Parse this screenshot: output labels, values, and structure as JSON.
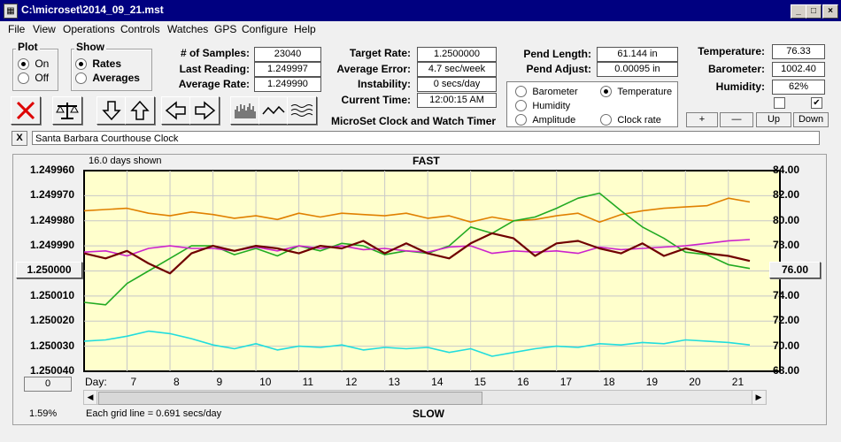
{
  "window": {
    "title": "C:\\microset\\2014_09_21.mst"
  },
  "menu": [
    "File",
    "View",
    "Operations",
    "Controls",
    "Watches",
    "GPS",
    "Configure",
    "Help"
  ],
  "plot": {
    "label": "Plot",
    "on": "On",
    "off": "Off"
  },
  "show": {
    "label": "Show",
    "rates": "Rates",
    "averages": "Averages"
  },
  "stats": {
    "samples_label": "# of Samples:",
    "samples": "23040",
    "last_label": "Last Reading:",
    "last": "1.249997",
    "avg_label": "Average Rate:",
    "avg": "1.249990"
  },
  "target": {
    "target_label": "Target Rate:",
    "target": "1.2500000",
    "avgerr_label": "Average Error:",
    "avgerr": "4.7 sec/week",
    "instab_label": "Instability:",
    "instab": "0 secs/day",
    "time_label": "Current Time:",
    "time": "12:00:15 AM",
    "app_name": "MicroSet Clock and Watch Timer"
  },
  "pendulum": {
    "length_label": "Pend Length:",
    "length": "61.144 in",
    "adjust_label": "Pend Adjust:",
    "adjust": "0.00095 in"
  },
  "env": {
    "temp_label": "Temperature:",
    "temp": "76.33",
    "baro_label": "Barometer:",
    "baro": "1002.40",
    "hum_label": "Humidity:",
    "hum": "62%"
  },
  "series_select": {
    "barometer": "Barometer",
    "temperature": "Temperature",
    "humidity": "Humidity",
    "amplitude": "Amplitude",
    "clock_rate": "Clock rate"
  },
  "buttons": {
    "plus": "+",
    "minus": "—",
    "up": "Up",
    "down": "Down",
    "close_x": "X"
  },
  "clock_name": "Santa Barbara Courthouse Clock",
  "colors": {
    "barometer": "#e08000",
    "temperature": "#22aa22",
    "humidity": "#cc22cc",
    "amplitude": "#22dddd",
    "clock_rate": "#700000",
    "plot_bg": "#ffffcc"
  },
  "chart": {
    "days_shown": "16.0 days shown",
    "fast": "FAST",
    "slow": "SLOW",
    "day_label": "Day:",
    "left_ticks": [
      "1.249960",
      "1.249970",
      "1.249980",
      "1.249990",
      "1.250000",
      "1.250010",
      "1.250020",
      "1.250030",
      "1.250040"
    ],
    "right_ticks": [
      "84.00",
      "82.00",
      "80.00",
      "78.00",
      "76.00",
      "74.00",
      "72.00",
      "70.00",
      "68.00"
    ],
    "center_left": "1.250000",
    "center_right": "76.00",
    "zero_btn": "0",
    "grid_note": "Each grid line = 0.691 secs/day",
    "percent": "1.59%"
  },
  "chart_data": {
    "type": "line",
    "x": [
      6.0,
      6.5,
      7.0,
      7.5,
      8.0,
      8.5,
      9.0,
      9.5,
      10.0,
      10.5,
      11.0,
      11.5,
      12.0,
      12.5,
      13.0,
      13.5,
      14.0,
      14.5,
      15.0,
      15.5,
      16.0,
      16.5,
      17.0,
      17.5,
      18.0,
      18.5,
      19.0,
      19.5,
      20.0,
      20.5,
      21.0,
      21.5
    ],
    "xticks": [
      7,
      8,
      9,
      10,
      11,
      12,
      13,
      14,
      15,
      16,
      17,
      18,
      19,
      20,
      21
    ],
    "xlim": [
      6.0,
      22.2
    ],
    "ylim_left": [
      1.24996,
      1.25004
    ],
    "ylim_right": [
      68,
      84
    ],
    "series": [
      {
        "name": "Barometer",
        "axis": "right",
        "values": [
          80.8,
          80.9,
          81.0,
          80.6,
          80.4,
          80.7,
          80.5,
          80.2,
          80.4,
          80.1,
          80.6,
          80.3,
          80.6,
          80.5,
          80.4,
          80.6,
          80.2,
          80.4,
          79.9,
          80.3,
          80.0,
          80.1,
          80.4,
          80.6,
          79.9,
          80.5,
          80.8,
          81.0,
          81.1,
          81.2,
          81.8,
          81.5
        ]
      },
      {
        "name": "Temperature",
        "axis": "right",
        "values": [
          73.5,
          73.3,
          75.0,
          76.0,
          77.0,
          78.0,
          78.0,
          77.3,
          77.8,
          77.2,
          78.0,
          77.6,
          78.2,
          78.0,
          77.3,
          77.6,
          77.4,
          78.0,
          79.5,
          79.0,
          80.0,
          80.3,
          81.0,
          81.8,
          82.2,
          80.8,
          79.5,
          78.6,
          77.5,
          77.3,
          76.5,
          76.2
        ]
      },
      {
        "name": "Humidity",
        "axis": "right",
        "values": [
          77.5,
          77.6,
          77.2,
          77.8,
          78.0,
          77.8,
          77.8,
          77.6,
          77.9,
          77.6,
          78.0,
          77.8,
          78.0,
          77.7,
          77.8,
          77.6,
          77.5,
          77.9,
          78.0,
          77.4,
          77.6,
          77.5,
          77.6,
          77.4,
          77.9,
          77.7,
          77.8,
          77.9,
          78.0,
          78.2,
          78.4,
          78.5
        ]
      },
      {
        "name": "Amplitude",
        "axis": "right",
        "values": [
          70.4,
          70.5,
          70.8,
          71.2,
          71.0,
          70.6,
          70.1,
          69.8,
          70.2,
          69.7,
          70.0,
          69.9,
          70.1,
          69.7,
          69.9,
          69.8,
          69.9,
          69.5,
          69.8,
          69.2,
          69.5,
          69.8,
          70.0,
          69.9,
          70.2,
          70.1,
          70.3,
          70.2,
          70.5,
          70.4,
          70.3,
          70.1
        ]
      },
      {
        "name": "Clock rate",
        "axis": "left",
        "values": [
          1.249993,
          1.249995,
          1.249992,
          1.249997,
          1.250001,
          1.249993,
          1.24999,
          1.249992,
          1.24999,
          1.249991,
          1.249993,
          1.24999,
          1.249991,
          1.249988,
          1.249993,
          1.249989,
          1.249993,
          1.249995,
          1.249989,
          1.249985,
          1.249987,
          1.249994,
          1.249989,
          1.249988,
          1.249991,
          1.249993,
          1.249989,
          1.249994,
          1.249991,
          1.249993,
          1.249994,
          1.249996
        ]
      }
    ]
  }
}
